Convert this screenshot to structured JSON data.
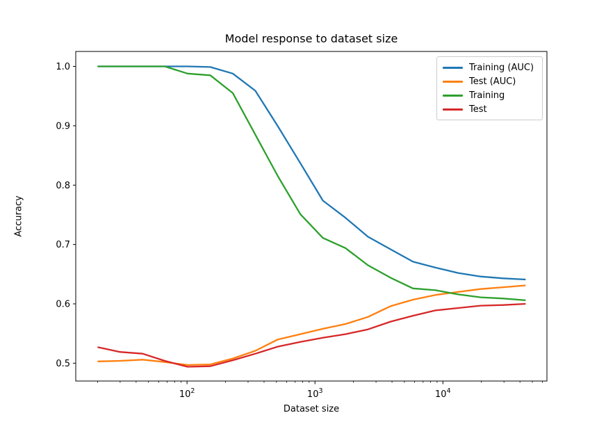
{
  "chart_data": {
    "type": "line",
    "title": "Model response to dataset size",
    "xlabel": "Dataset size",
    "ylabel": "Accuracy",
    "xscale": "log",
    "xlim": [
      13.5,
      65000
    ],
    "ylim": [
      0.47,
      1.0252
    ],
    "grid": false,
    "legend_position": "upper right",
    "x": [
      20,
      30,
      45,
      67,
      101,
      152,
      228,
      342,
      513,
      769,
      1153,
      1730,
      2595,
      3892,
      5839,
      8758,
      13137,
      19705,
      29558,
      44337
    ],
    "series": [
      {
        "name": "Training (AUC)",
        "color": "#1f77b4",
        "values": [
          1.0,
          1.0,
          1.0,
          1.0,
          1.0,
          0.999,
          0.988,
          0.959,
          0.899,
          0.837,
          0.774,
          0.745,
          0.713,
          0.692,
          0.671,
          0.661,
          0.652,
          0.646,
          0.643,
          0.641
        ]
      },
      {
        "name": "Test (AUC)",
        "color": "#ff7f0e",
        "values": [
          0.503,
          0.504,
          0.506,
          0.502,
          0.497,
          0.498,
          0.508,
          0.521,
          0.54,
          0.549,
          0.558,
          0.566,
          0.578,
          0.596,
          0.607,
          0.615,
          0.62,
          0.625,
          0.628,
          0.631
        ]
      },
      {
        "name": "Training",
        "color": "#2ca02c",
        "values": [
          1.0,
          1.0,
          1.0,
          1.0,
          0.988,
          0.985,
          0.955,
          0.885,
          0.815,
          0.751,
          0.711,
          0.694,
          0.665,
          0.644,
          0.626,
          0.623,
          0.616,
          0.611,
          0.609,
          0.606
        ]
      },
      {
        "name": "Test",
        "color": "#d62728",
        "values": [
          0.527,
          0.519,
          0.516,
          0.504,
          0.494,
          0.495,
          0.505,
          0.516,
          0.528,
          0.536,
          0.543,
          0.549,
          0.557,
          0.57,
          0.58,
          0.589,
          0.593,
          0.597,
          0.598,
          0.6
        ]
      }
    ],
    "yticks": [
      0.5,
      0.6,
      0.7,
      0.8,
      0.9,
      1.0
    ],
    "ytick_labels": [
      "0.5",
      "0.6",
      "0.7",
      "0.8",
      "0.9",
      "1.0"
    ],
    "xticks": [
      {
        "value": 100,
        "label_base": "10",
        "label_exp": "2"
      },
      {
        "value": 1000,
        "label_base": "10",
        "label_exp": "3"
      },
      {
        "value": 10000,
        "label_base": "10",
        "label_exp": "4"
      }
    ],
    "x_minor_multiples": [
      2,
      3,
      4,
      5,
      6,
      7,
      8,
      9
    ]
  }
}
